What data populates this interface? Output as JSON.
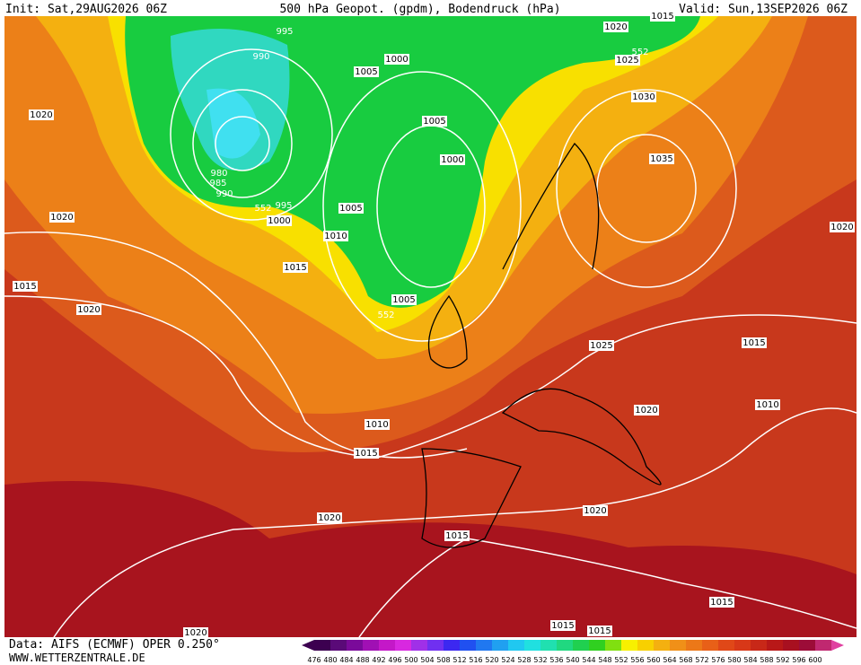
{
  "header": {
    "init": "Init: Sat,29AUG2026 06Z",
    "title": "500 hPa Geopot. (gpdm), Bodendruck (hPa)",
    "valid": "Valid: Sun,13SEP2026 06Z"
  },
  "map": {
    "isobar_labels": [
      "1015",
      "1020",
      "552",
      "1025",
      "995",
      "990",
      "1005",
      "1000",
      "1020",
      "1005",
      "1030",
      "1000",
      "1035",
      "980",
      "985",
      "990",
      "995",
      "552",
      "1000",
      "1005",
      "1020",
      "1010",
      "1020",
      "1015",
      "1015",
      "1005",
      "552",
      "1020",
      "1025",
      "1015",
      "1010",
      "1020",
      "1010",
      "1015",
      "1020",
      "1020",
      "1015",
      "1015",
      "1015",
      "1015",
      "1020"
    ]
  },
  "footer": {
    "data": "Data: AIFS (ECMWF) OPER 0.250°",
    "site": "WWW.WETTERZENTRALE.DE"
  },
  "colorbar": {
    "labels": [
      476,
      480,
      484,
      488,
      492,
      496,
      500,
      504,
      508,
      512,
      516,
      520,
      524,
      528,
      532,
      536,
      540,
      544,
      548,
      552,
      556,
      560,
      564,
      568,
      572,
      576,
      580,
      584,
      588,
      592,
      596,
      600
    ]
  }
}
